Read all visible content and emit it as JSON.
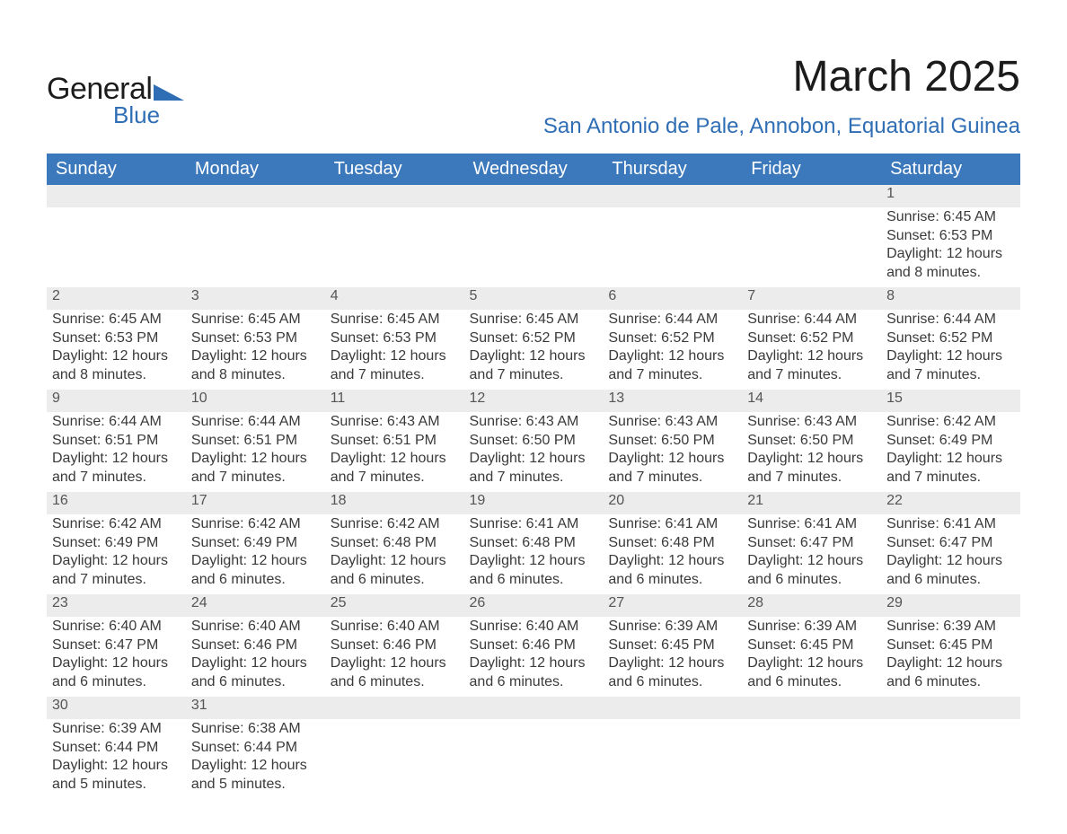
{
  "logo": {
    "line1": "General",
    "line2": "Blue",
    "triangle_color": "#2f6eb5",
    "text_color_dark": "#1c1c1c"
  },
  "title": "March 2025",
  "location": "San Antonio de Pale, Annobon, Equatorial Guinea",
  "colors": {
    "header_bg": "#3b78bc",
    "header_text": "#ffffff",
    "daynum_bg": "#ececec",
    "daynum_text": "#555555",
    "body_text": "#3a3a3a",
    "row_border": "#3b78bc",
    "accent": "#2f6eb5",
    "page_bg": "#ffffff"
  },
  "typography": {
    "title_fontsize": 48,
    "location_fontsize": 24,
    "weekday_fontsize": 20,
    "daynum_fontsize": 19,
    "cell_fontsize": 16,
    "font_family": "Arial"
  },
  "weekdays": [
    "Sunday",
    "Monday",
    "Tuesday",
    "Wednesday",
    "Thursday",
    "Friday",
    "Saturday"
  ],
  "weeks": [
    [
      null,
      null,
      null,
      null,
      null,
      null,
      {
        "n": "1",
        "sunrise": "Sunrise: 6:45 AM",
        "sunset": "Sunset: 6:53 PM",
        "daylight": "Daylight: 12 hours and 8 minutes."
      }
    ],
    [
      {
        "n": "2",
        "sunrise": "Sunrise: 6:45 AM",
        "sunset": "Sunset: 6:53 PM",
        "daylight": "Daylight: 12 hours and 8 minutes."
      },
      {
        "n": "3",
        "sunrise": "Sunrise: 6:45 AM",
        "sunset": "Sunset: 6:53 PM",
        "daylight": "Daylight: 12 hours and 8 minutes."
      },
      {
        "n": "4",
        "sunrise": "Sunrise: 6:45 AM",
        "sunset": "Sunset: 6:53 PM",
        "daylight": "Daylight: 12 hours and 7 minutes."
      },
      {
        "n": "5",
        "sunrise": "Sunrise: 6:45 AM",
        "sunset": "Sunset: 6:52 PM",
        "daylight": "Daylight: 12 hours and 7 minutes."
      },
      {
        "n": "6",
        "sunrise": "Sunrise: 6:44 AM",
        "sunset": "Sunset: 6:52 PM",
        "daylight": "Daylight: 12 hours and 7 minutes."
      },
      {
        "n": "7",
        "sunrise": "Sunrise: 6:44 AM",
        "sunset": "Sunset: 6:52 PM",
        "daylight": "Daylight: 12 hours and 7 minutes."
      },
      {
        "n": "8",
        "sunrise": "Sunrise: 6:44 AM",
        "sunset": "Sunset: 6:52 PM",
        "daylight": "Daylight: 12 hours and 7 minutes."
      }
    ],
    [
      {
        "n": "9",
        "sunrise": "Sunrise: 6:44 AM",
        "sunset": "Sunset: 6:51 PM",
        "daylight": "Daylight: 12 hours and 7 minutes."
      },
      {
        "n": "10",
        "sunrise": "Sunrise: 6:44 AM",
        "sunset": "Sunset: 6:51 PM",
        "daylight": "Daylight: 12 hours and 7 minutes."
      },
      {
        "n": "11",
        "sunrise": "Sunrise: 6:43 AM",
        "sunset": "Sunset: 6:51 PM",
        "daylight": "Daylight: 12 hours and 7 minutes."
      },
      {
        "n": "12",
        "sunrise": "Sunrise: 6:43 AM",
        "sunset": "Sunset: 6:50 PM",
        "daylight": "Daylight: 12 hours and 7 minutes."
      },
      {
        "n": "13",
        "sunrise": "Sunrise: 6:43 AM",
        "sunset": "Sunset: 6:50 PM",
        "daylight": "Daylight: 12 hours and 7 minutes."
      },
      {
        "n": "14",
        "sunrise": "Sunrise: 6:43 AM",
        "sunset": "Sunset: 6:50 PM",
        "daylight": "Daylight: 12 hours and 7 minutes."
      },
      {
        "n": "15",
        "sunrise": "Sunrise: 6:42 AM",
        "sunset": "Sunset: 6:49 PM",
        "daylight": "Daylight: 12 hours and 7 minutes."
      }
    ],
    [
      {
        "n": "16",
        "sunrise": "Sunrise: 6:42 AM",
        "sunset": "Sunset: 6:49 PM",
        "daylight": "Daylight: 12 hours and 7 minutes."
      },
      {
        "n": "17",
        "sunrise": "Sunrise: 6:42 AM",
        "sunset": "Sunset: 6:49 PM",
        "daylight": "Daylight: 12 hours and 6 minutes."
      },
      {
        "n": "18",
        "sunrise": "Sunrise: 6:42 AM",
        "sunset": "Sunset: 6:48 PM",
        "daylight": "Daylight: 12 hours and 6 minutes."
      },
      {
        "n": "19",
        "sunrise": "Sunrise: 6:41 AM",
        "sunset": "Sunset: 6:48 PM",
        "daylight": "Daylight: 12 hours and 6 minutes."
      },
      {
        "n": "20",
        "sunrise": "Sunrise: 6:41 AM",
        "sunset": "Sunset: 6:48 PM",
        "daylight": "Daylight: 12 hours and 6 minutes."
      },
      {
        "n": "21",
        "sunrise": "Sunrise: 6:41 AM",
        "sunset": "Sunset: 6:47 PM",
        "daylight": "Daylight: 12 hours and 6 minutes."
      },
      {
        "n": "22",
        "sunrise": "Sunrise: 6:41 AM",
        "sunset": "Sunset: 6:47 PM",
        "daylight": "Daylight: 12 hours and 6 minutes."
      }
    ],
    [
      {
        "n": "23",
        "sunrise": "Sunrise: 6:40 AM",
        "sunset": "Sunset: 6:47 PM",
        "daylight": "Daylight: 12 hours and 6 minutes."
      },
      {
        "n": "24",
        "sunrise": "Sunrise: 6:40 AM",
        "sunset": "Sunset: 6:46 PM",
        "daylight": "Daylight: 12 hours and 6 minutes."
      },
      {
        "n": "25",
        "sunrise": "Sunrise: 6:40 AM",
        "sunset": "Sunset: 6:46 PM",
        "daylight": "Daylight: 12 hours and 6 minutes."
      },
      {
        "n": "26",
        "sunrise": "Sunrise: 6:40 AM",
        "sunset": "Sunset: 6:46 PM",
        "daylight": "Daylight: 12 hours and 6 minutes."
      },
      {
        "n": "27",
        "sunrise": "Sunrise: 6:39 AM",
        "sunset": "Sunset: 6:45 PM",
        "daylight": "Daylight: 12 hours and 6 minutes."
      },
      {
        "n": "28",
        "sunrise": "Sunrise: 6:39 AM",
        "sunset": "Sunset: 6:45 PM",
        "daylight": "Daylight: 12 hours and 6 minutes."
      },
      {
        "n": "29",
        "sunrise": "Sunrise: 6:39 AM",
        "sunset": "Sunset: 6:45 PM",
        "daylight": "Daylight: 12 hours and 6 minutes."
      }
    ],
    [
      {
        "n": "30",
        "sunrise": "Sunrise: 6:39 AM",
        "sunset": "Sunset: 6:44 PM",
        "daylight": "Daylight: 12 hours and 5 minutes."
      },
      {
        "n": "31",
        "sunrise": "Sunrise: 6:38 AM",
        "sunset": "Sunset: 6:44 PM",
        "daylight": "Daylight: 12 hours and 5 minutes."
      },
      null,
      null,
      null,
      null,
      null
    ]
  ]
}
